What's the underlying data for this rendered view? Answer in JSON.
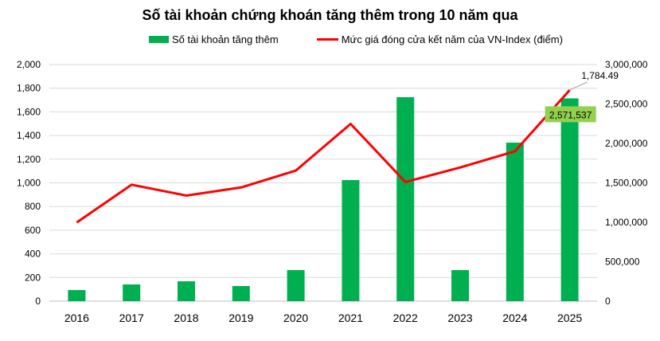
{
  "chart_data": {
    "type": "bar",
    "title": "Số tài khoản chứng khoán tăng thêm trong 10 năm qua",
    "categories": [
      "2016",
      "2017",
      "2018",
      "2019",
      "2020",
      "2021",
      "2022",
      "2023",
      "2024",
      "2025"
    ],
    "series": [
      {
        "name": "Số tài khoản tăng thêm",
        "type": "bar",
        "axis": "right",
        "color": "#00b050",
        "values": [
          141000,
          212000,
          252000,
          192000,
          394000,
          1535000,
          2586000,
          394000,
          2010000,
          2571537
        ]
      },
      {
        "name": "Mức giá đóng cửa kết năm của VN-Index (điểm)",
        "type": "line",
        "axis": "left",
        "color": "#ff0000",
        "values": [
          664.87,
          984.24,
          892.54,
          960.99,
          1103.87,
          1498.28,
          1007.09,
          1129.93,
          1266.78,
          1784.49
        ]
      }
    ],
    "y_left": {
      "range": [
        0,
        2000
      ],
      "ticks": [
        "0",
        "200",
        "400",
        "600",
        "800",
        "1,000",
        "1,200",
        "1,400",
        "1,600",
        "1,800",
        "2,000"
      ]
    },
    "y_right": {
      "range": [
        0,
        3000000
      ],
      "ticks": [
        "0",
        "500,000",
        "1,000,000",
        "1,500,000",
        "2,000,000",
        "2,500,000",
        "3,000,000"
      ]
    },
    "data_labels": {
      "line_last": "1,784.49",
      "bar_last": "2,571,537"
    },
    "label_bg": "#92d050",
    "grid": true,
    "legend_position": "top"
  }
}
